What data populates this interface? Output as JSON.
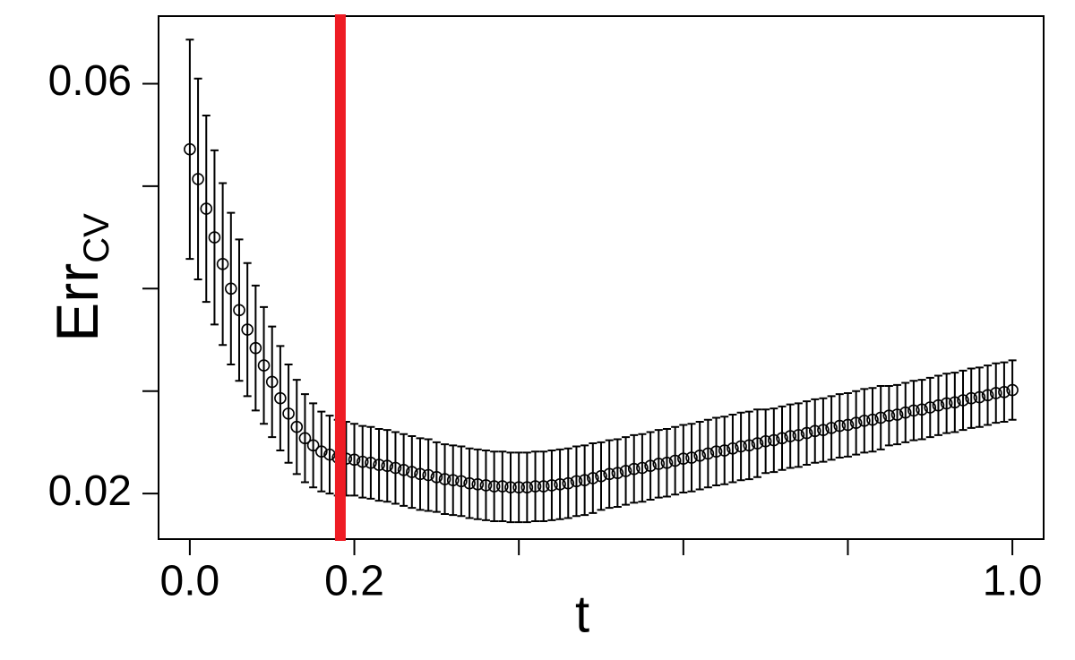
{
  "chart_data": {
    "type": "errorbar",
    "xlabel": "t",
    "ylabel": "Err",
    "ylabel_sub": "CV",
    "xlim": [
      -0.038,
      1.038
    ],
    "ylim": [
      0.01555,
      0.0666
    ],
    "xticks": [
      {
        "value": 0,
        "label": "0.0"
      },
      {
        "value": 0.2,
        "label": "0.2"
      },
      {
        "value": 0.4,
        "label": null
      },
      {
        "value": 0.6,
        "label": null
      },
      {
        "value": 0.8,
        "label": null
      },
      {
        "value": 1,
        "label": "1.0"
      }
    ],
    "yticks": [
      0.02,
      {
        "value": 0.03,
        "label": null
      },
      {
        "value": 0.04,
        "label": null
      },
      {
        "value": 0.05,
        "label": null
      },
      0.06
    ],
    "vline": {
      "x": 0.183,
      "color": "#ee1c24"
    },
    "x": [
      0,
      0.01,
      0.02,
      0.03,
      0.04,
      0.05,
      0.06,
      0.07,
      0.08,
      0.09,
      0.1,
      0.11,
      0.12,
      0.13,
      0.14,
      0.15,
      0.16,
      0.17,
      0.18,
      0.19,
      0.2,
      0.21,
      0.22,
      0.23,
      0.24,
      0.25,
      0.26,
      0.27,
      0.28,
      0.29,
      0.3,
      0.31,
      0.32,
      0.33,
      0.34,
      0.35,
      0.36,
      0.37,
      0.38,
      0.39,
      0.4,
      0.41,
      0.42,
      0.43,
      0.44,
      0.45,
      0.46,
      0.47,
      0.48,
      0.49,
      0.5,
      0.51,
      0.52,
      0.53,
      0.54,
      0.55,
      0.56,
      0.57,
      0.58,
      0.59,
      0.6,
      0.61,
      0.62,
      0.63,
      0.64,
      0.65,
      0.66,
      0.67,
      0.68,
      0.69,
      0.7,
      0.71,
      0.72,
      0.73,
      0.74,
      0.75,
      0.76,
      0.77,
      0.78,
      0.79,
      0.8,
      0.81,
      0.82,
      0.83,
      0.84,
      0.85,
      0.86,
      0.87,
      0.88,
      0.89,
      0.9,
      0.91,
      0.92,
      0.93,
      0.94,
      0.95,
      0.96,
      0.97,
      0.98,
      0.99,
      1
    ],
    "series": [
      {
        "color": "#000000",
        "values": [
          0.0536,
          0.0507,
          0.0478,
          0.045,
          0.0424,
          0.04,
          0.0379,
          0.036,
          0.0342,
          0.0325,
          0.0309,
          0.0293,
          0.0278,
          0.0265,
          0.0254,
          0.0247,
          0.0241,
          0.0238,
          0.0235,
          0.0234,
          0.0233,
          0.0231,
          0.023,
          0.0228,
          0.0227,
          0.0225,
          0.0223,
          0.0221,
          0.0219,
          0.0218,
          0.0216,
          0.0214,
          0.0213,
          0.0212,
          0.021,
          0.0209,
          0.0208,
          0.0207,
          0.0207,
          0.0206,
          0.0206,
          0.0206,
          0.0207,
          0.0207,
          0.0208,
          0.0209,
          0.021,
          0.0212,
          0.0213,
          0.0215,
          0.0217,
          0.0219,
          0.022,
          0.0222,
          0.0224,
          0.0225,
          0.0227,
          0.0229,
          0.023,
          0.0232,
          0.0234,
          0.0235,
          0.0237,
          0.0239,
          0.0241,
          0.0242,
          0.0244,
          0.0246,
          0.0247,
          0.0249,
          0.0251,
          0.0252,
          0.0254,
          0.0256,
          0.0257,
          0.0259,
          0.0261,
          0.0262,
          0.0264,
          0.0266,
          0.0267,
          0.0269,
          0.0271,
          0.0272,
          0.0274,
          0.0276,
          0.0277,
          0.0279,
          0.0281,
          0.0282,
          0.0284,
          0.0286,
          0.0288,
          0.0289,
          0.0291,
          0.0293,
          0.0294,
          0.0296,
          0.0298,
          0.0299,
          0.0301
        ],
        "errors": [
          0.0107,
          0.0098,
          0.0091,
          0.0085,
          0.0079,
          0.0074,
          0.0069,
          0.0065,
          0.0061,
          0.0057,
          0.0054,
          0.0051,
          0.0048,
          0.0046,
          0.0043,
          0.0041,
          0.0039,
          0.0038,
          0.0037,
          0.0036,
          0.0035,
          0.0035,
          0.0035,
          0.0035,
          0.0035,
          0.0035,
          0.0035,
          0.0035,
          0.0035,
          0.0035,
          0.0034,
          0.0034,
          0.0034,
          0.0034,
          0.0034,
          0.0034,
          0.0034,
          0.0034,
          0.0034,
          0.0034,
          0.0034,
          0.0034,
          0.0034,
          0.0034,
          0.0034,
          0.0034,
          0.0034,
          0.0034,
          0.0034,
          0.0034,
          0.0033,
          0.0033,
          0.0033,
          0.0033,
          0.0033,
          0.0033,
          0.0033,
          0.0033,
          0.0033,
          0.0033,
          0.0033,
          0.0033,
          0.0033,
          0.0033,
          0.0033,
          0.0033,
          0.0033,
          0.0033,
          0.0033,
          0.0033,
          0.0031,
          0.0031,
          0.0031,
          0.0031,
          0.0031,
          0.0031,
          0.0031,
          0.0031,
          0.0031,
          0.0031,
          0.0031,
          0.0031,
          0.0031,
          0.0031,
          0.0031,
          0.0029,
          0.0029,
          0.0029,
          0.0029,
          0.0029,
          0.0029,
          0.0029,
          0.0029,
          0.0029,
          0.0029,
          0.0029,
          0.0029,
          0.0029,
          0.0029,
          0.0029,
          0.0029
        ]
      }
    ]
  }
}
